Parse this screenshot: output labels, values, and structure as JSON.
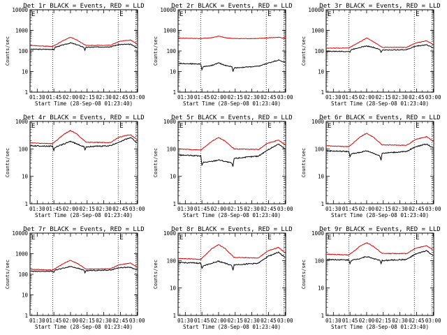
{
  "figure_title": "",
  "chart_data": [
    {
      "type": "line",
      "title": "Det 1r BLACK = Events, RED = LLD",
      "xlabel": "Start Time (28-Sep-08 01:23:40)",
      "ylabel": "Counts/sec",
      "yscale": "log",
      "ylim": [
        1,
        10000
      ],
      "xlim_minutes_after_0130": [
        -6.5,
        90.5
      ],
      "x_ticks": [
        "01:30",
        "01:45",
        "02:00",
        "02:15",
        "02:30",
        "02:45",
        "03:00"
      ],
      "y_ticks": [
        "1",
        "10",
        "100",
        "1000",
        "10000"
      ],
      "marker_lines_minutes": [
        14,
        73,
        89
      ],
      "marker_label": "E",
      "series": [
        {
          "name": "Events",
          "color": "#000000",
          "x": [
            -6,
            14,
            15,
            16,
            24,
            30,
            36,
            42,
            43,
            44,
            66,
            74,
            84,
            90
          ],
          "y": [
            120,
            120,
            110,
            150,
            200,
            245,
            200,
            150,
            110,
            150,
            160,
            205,
            210,
            145
          ]
        },
        {
          "name": "LLD",
          "color": "#e00000",
          "x": [
            -6,
            14,
            24,
            30,
            36,
            44,
            66,
            74,
            84,
            90
          ],
          "y": [
            185,
            165,
            330,
            470,
            335,
            185,
            190,
            290,
            340,
            225
          ]
        }
      ]
    },
    {
      "type": "line",
      "title": "Det 2r BLACK = Events, RED = LLD",
      "xlabel": "Start Time (28-Sep-08 01:23:40)",
      "ylabel": "Counts/sec",
      "yscale": "log",
      "ylim": [
        1,
        10000
      ],
      "xlim_minutes_after_0130": [
        -6.5,
        90.5
      ],
      "x_ticks": [
        "01:30",
        "01:45",
        "02:00",
        "02:15",
        "02:30",
        "02:45",
        "03:00"
      ],
      "y_ticks": [
        "1",
        "10",
        "100",
        "1000",
        "10000"
      ],
      "marker_lines_minutes": [
        14,
        73,
        89
      ],
      "marker_label": "E",
      "series": [
        {
          "name": "Events",
          "color": "#000000",
          "x": [
            -6,
            14,
            15,
            16,
            24,
            30,
            36,
            42,
            43,
            44,
            66,
            74,
            84,
            90
          ],
          "y": [
            25,
            23,
            12,
            17,
            20,
            26,
            20,
            17,
            10,
            15,
            18,
            25,
            36,
            28
          ]
        },
        {
          "name": "LLD",
          "color": "#e00000",
          "x": [
            -6,
            14,
            24,
            30,
            36,
            44,
            66,
            74,
            84,
            90
          ],
          "y": [
            420,
            400,
            440,
            520,
            440,
            400,
            400,
            430,
            460,
            420
          ]
        }
      ]
    },
    {
      "type": "line",
      "title": "Det 3r BLACK = Events, RED = LLD",
      "xlabel": "Start Time (28-Sep-08 01:23:40)",
      "ylabel": "Counts/sec",
      "yscale": "log",
      "ylim": [
        1,
        10000
      ],
      "xlim_minutes_after_0130": [
        -6.5,
        90.5
      ],
      "x_ticks": [
        "01:30",
        "01:45",
        "02:00",
        "02:15",
        "02:30",
        "02:45",
        "03:00"
      ],
      "y_ticks": [
        "1",
        "10",
        "100",
        "1000",
        "10000"
      ],
      "marker_lines_minutes": [
        14,
        73,
        89
      ],
      "marker_label": "E",
      "series": [
        {
          "name": "Events",
          "color": "#000000",
          "x": [
            -6,
            14,
            15,
            16,
            24,
            30,
            36,
            42,
            43,
            44,
            66,
            74,
            84,
            90
          ],
          "y": [
            95,
            95,
            85,
            115,
            150,
            175,
            150,
            115,
            85,
            110,
            115,
            170,
            200,
            140
          ]
        },
        {
          "name": "LLD",
          "color": "#e00000",
          "x": [
            -6,
            14,
            24,
            30,
            36,
            44,
            66,
            74,
            84,
            90
          ],
          "y": [
            135,
            140,
            280,
            420,
            285,
            150,
            150,
            240,
            310,
            210
          ]
        }
      ]
    },
    {
      "type": "line",
      "title": "Det 4r BLACK = Events, RED = LLD",
      "xlabel": "Start Time (28-Sep-08 01:23:40)",
      "ylabel": "Counts/sec",
      "yscale": "log",
      "ylim": [
        1,
        1000
      ],
      "xlim_minutes_after_0130": [
        -6.5,
        90.5
      ],
      "x_ticks": [
        "01:30",
        "01:45",
        "02:00",
        "02:15",
        "02:30",
        "02:45",
        "03:00"
      ],
      "y_ticks": [
        "1",
        "10",
        "100",
        "1000"
      ],
      "marker_lines_minutes": [
        14,
        73,
        89
      ],
      "marker_label": "E",
      "series": [
        {
          "name": "Events",
          "color": "#000000",
          "x": [
            -6,
            14,
            15,
            16,
            24,
            30,
            36,
            42,
            43,
            44,
            66,
            74,
            84,
            90
          ],
          "y": [
            130,
            125,
            85,
            115,
            150,
            190,
            150,
            120,
            90,
            120,
            130,
            180,
            260,
            170
          ]
        },
        {
          "name": "LLD",
          "color": "#e00000",
          "x": [
            -6,
            14,
            24,
            30,
            36,
            44,
            66,
            74,
            84,
            90
          ],
          "y": [
            165,
            155,
            340,
            470,
            340,
            175,
            170,
            270,
            330,
            220
          ]
        }
      ]
    },
    {
      "type": "line",
      "title": "Det 5r BLACK = Events, RED = LLD",
      "xlabel": "Start Time (28-Sep-08 01:23:40)",
      "ylabel": "Counts/sec",
      "yscale": "log",
      "ylim": [
        1,
        1000
      ],
      "xlim_minutes_after_0130": [
        -6.5,
        90.5
      ],
      "x_ticks": [
        "01:30",
        "01:45",
        "02:00",
        "02:15",
        "02:30",
        "02:45",
        "03:00"
      ],
      "y_ticks": [
        "1",
        "10",
        "100",
        "1000"
      ],
      "marker_lines_minutes": [
        14,
        73,
        89
      ],
      "marker_label": "E",
      "series": [
        {
          "name": "Events",
          "color": "#000000",
          "x": [
            -6,
            14,
            15,
            16,
            24,
            30,
            36,
            42,
            43,
            44,
            66,
            74,
            84,
            90
          ],
          "y": [
            60,
            55,
            25,
            32,
            35,
            40,
            35,
            30,
            22,
            45,
            55,
            90,
            150,
            100
          ]
        },
        {
          "name": "LLD",
          "color": "#e00000",
          "x": [
            -6,
            14,
            24,
            30,
            36,
            44,
            66,
            74,
            84,
            90
          ],
          "y": [
            100,
            90,
            190,
            260,
            190,
            100,
            95,
            160,
            210,
            140
          ]
        }
      ]
    },
    {
      "type": "line",
      "title": "Det 6r BLACK = Events, RED = LLD",
      "xlabel": "Start Time (28-Sep-08 01:23:40)",
      "ylabel": "Counts/sec",
      "yscale": "log",
      "ylim": [
        1,
        1000
      ],
      "xlim_minutes_after_0130": [
        -6.5,
        90.5
      ],
      "x_ticks": [
        "01:30",
        "01:45",
        "02:00",
        "02:15",
        "02:30",
        "02:45",
        "03:00"
      ],
      "y_ticks": [
        "1",
        "10",
        "100",
        "1000"
      ],
      "marker_lines_minutes": [
        14,
        73,
        89
      ],
      "marker_label": "E",
      "series": [
        {
          "name": "Events",
          "color": "#000000",
          "x": [
            -6,
            14,
            15,
            16,
            24,
            30,
            36,
            42,
            43,
            44,
            66,
            74,
            84,
            90
          ],
          "y": [
            85,
            80,
            50,
            65,
            75,
            85,
            70,
            55,
            40,
            70,
            80,
            120,
            150,
            110
          ]
        },
        {
          "name": "LLD",
          "color": "#e00000",
          "x": [
            -6,
            14,
            24,
            30,
            36,
            44,
            66,
            74,
            84,
            90
          ],
          "y": [
            130,
            120,
            270,
            370,
            270,
            140,
            135,
            220,
            280,
            190
          ]
        }
      ]
    },
    {
      "type": "line",
      "title": "Det 7r BLACK = Events, RED = LLD",
      "xlabel": "Start Time (28-Sep-08 01:23:40)",
      "ylabel": "Counts/sec",
      "yscale": "log",
      "ylim": [
        1,
        10000
      ],
      "xlim_minutes_after_0130": [
        -6.5,
        90.5
      ],
      "x_ticks": [
        "01:30",
        "01:45",
        "02:00",
        "02:15",
        "02:30",
        "02:45",
        "03:00"
      ],
      "y_ticks": [
        "1",
        "10",
        "100",
        "1000",
        "10000"
      ],
      "marker_lines_minutes": [
        14,
        73,
        89
      ],
      "marker_label": "E",
      "series": [
        {
          "name": "Events",
          "color": "#000000",
          "x": [
            -6,
            14,
            15,
            16,
            24,
            30,
            36,
            42,
            43,
            44,
            66,
            74,
            84,
            90
          ],
          "y": [
            140,
            140,
            120,
            160,
            200,
            240,
            200,
            160,
            120,
            150,
            160,
            210,
            220,
            160
          ]
        },
        {
          "name": "LLD",
          "color": "#e00000",
          "x": [
            -6,
            14,
            24,
            30,
            36,
            44,
            66,
            74,
            84,
            90
          ],
          "y": [
            175,
            160,
            340,
            480,
            340,
            180,
            185,
            290,
            350,
            230
          ]
        }
      ]
    },
    {
      "type": "line",
      "title": "Det 8r BLACK = Events, RED = LLD",
      "xlabel": "Start Time (28-Sep-08 01:23:40)",
      "ylabel": "Counts/sec",
      "yscale": "log",
      "ylim": [
        1,
        1000
      ],
      "xlim_minutes_after_0130": [
        -6.5,
        90.5
      ],
      "x_ticks": [
        "01:30",
        "01:45",
        "02:00",
        "02:15",
        "02:30",
        "02:45",
        "03:00"
      ],
      "y_ticks": [
        "1",
        "10",
        "100",
        "1000"
      ],
      "marker_lines_minutes": [
        14,
        73,
        89
      ],
      "marker_label": "E",
      "series": [
        {
          "name": "Events",
          "color": "#000000",
          "x": [
            -6,
            14,
            15,
            16,
            24,
            30,
            36,
            42,
            43,
            44,
            66,
            74,
            84,
            90
          ],
          "y": [
            85,
            80,
            50,
            65,
            80,
            95,
            80,
            65,
            45,
            70,
            80,
            140,
            200,
            130
          ]
        },
        {
          "name": "LLD",
          "color": "#e00000",
          "x": [
            -6,
            14,
            24,
            30,
            36,
            44,
            66,
            74,
            84,
            90
          ],
          "y": [
            120,
            110,
            270,
            380,
            270,
            130,
            125,
            220,
            300,
            190
          ]
        }
      ]
    },
    {
      "type": "line",
      "title": "Det 9r BLACK = Events, RED = LLD",
      "xlabel": "Start Time (28-Sep-08 01:23:40)",
      "ylabel": "Counts/sec",
      "yscale": "log",
      "ylim": [
        1,
        1000
      ],
      "xlim_minutes_after_0130": [
        -6.5,
        90.5
      ],
      "x_ticks": [
        "01:30",
        "01:45",
        "02:00",
        "02:15",
        "02:30",
        "02:45",
        "03:00"
      ],
      "y_ticks": [
        "1",
        "10",
        "100",
        "1000"
      ],
      "marker_lines_minutes": [
        14,
        73,
        89
      ],
      "marker_label": "E",
      "series": [
        {
          "name": "Events",
          "color": "#000000",
          "x": [
            -6,
            14,
            15,
            16,
            24,
            30,
            36,
            42,
            43,
            44,
            66,
            74,
            84,
            90
          ],
          "y": [
            110,
            105,
            80,
            100,
            120,
            140,
            120,
            100,
            75,
            100,
            110,
            170,
            230,
            150
          ]
        },
        {
          "name": "LLD",
          "color": "#e00000",
          "x": [
            -6,
            14,
            24,
            30,
            36,
            44,
            66,
            74,
            84,
            90
          ],
          "y": [
            170,
            160,
            330,
            450,
            330,
            180,
            180,
            280,
            350,
            240
          ]
        }
      ]
    }
  ]
}
